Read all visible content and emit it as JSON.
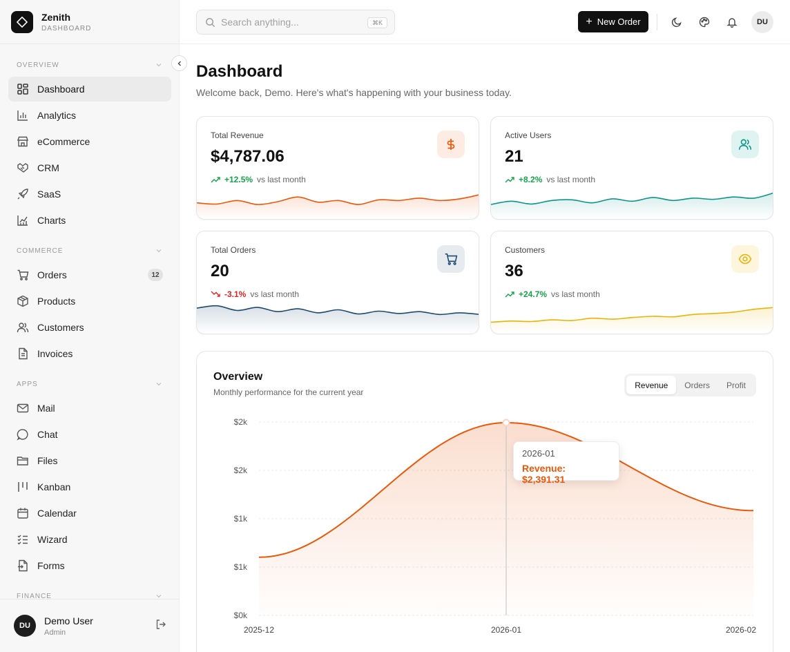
{
  "brand": {
    "name": "Zenith",
    "subtitle": "DASHBOARD"
  },
  "sidebar": {
    "sections": [
      {
        "title": "OVERVIEW",
        "items": [
          {
            "label": "Dashboard",
            "icon": "dashboard-icon",
            "active": true
          },
          {
            "label": "Analytics",
            "icon": "bar-chart-icon"
          },
          {
            "label": "eCommerce",
            "icon": "store-icon"
          },
          {
            "label": "CRM",
            "icon": "handshake-icon"
          },
          {
            "label": "SaaS",
            "icon": "rocket-icon"
          },
          {
            "label": "Charts",
            "icon": "line-chart-icon"
          }
        ]
      },
      {
        "title": "COMMERCE",
        "items": [
          {
            "label": "Orders",
            "icon": "cart-icon",
            "badge": "12"
          },
          {
            "label": "Products",
            "icon": "package-icon"
          },
          {
            "label": "Customers",
            "icon": "users-icon"
          },
          {
            "label": "Invoices",
            "icon": "file-icon"
          }
        ]
      },
      {
        "title": "APPS",
        "items": [
          {
            "label": "Mail",
            "icon": "mail-icon"
          },
          {
            "label": "Chat",
            "icon": "chat-icon"
          },
          {
            "label": "Files",
            "icon": "folder-icon"
          },
          {
            "label": "Kanban",
            "icon": "kanban-icon"
          },
          {
            "label": "Calendar",
            "icon": "calendar-icon"
          },
          {
            "label": "Wizard",
            "icon": "checklist-icon"
          },
          {
            "label": "Forms",
            "icon": "form-icon"
          }
        ]
      },
      {
        "title": "FINANCE",
        "items": []
      }
    ]
  },
  "user": {
    "initials": "DU",
    "name": "Demo User",
    "role": "Admin"
  },
  "header": {
    "search_placeholder": "Search anything...",
    "shortcut": "⌘K",
    "new_order_label": "New Order",
    "avatar_initials": "DU"
  },
  "page": {
    "title": "Dashboard",
    "subtitle": "Welcome back, Demo. Here's what's happening with your business today."
  },
  "stats": [
    {
      "label": "Total Revenue",
      "value": "$4,787.06",
      "change": "+12.5%",
      "vs": "vs last month",
      "direction": "up",
      "icon": "dollar-icon",
      "color": "#ea580c",
      "icon_bg": "#fdece3",
      "spark": [
        0.55,
        0.6,
        0.45,
        0.62,
        0.5,
        0.3,
        0.52,
        0.45,
        0.62,
        0.42,
        0.45,
        0.35,
        0.45,
        0.38,
        0.2
      ]
    },
    {
      "label": "Active Users",
      "value": "21",
      "change": "+8.2%",
      "vs": "vs last month",
      "direction": "up",
      "icon": "users-icon",
      "color": "#0d9488",
      "icon_bg": "#dff3f1",
      "spark": [
        0.62,
        0.48,
        0.6,
        0.45,
        0.42,
        0.55,
        0.38,
        0.48,
        0.32,
        0.45,
        0.35,
        0.4,
        0.3,
        0.35,
        0.12
      ]
    },
    {
      "label": "Total Orders",
      "value": "20",
      "change": "-3.1%",
      "vs": "vs last month",
      "direction": "down",
      "icon": "cart-icon",
      "color": "#1e4a6e",
      "icon_bg": "#e6ebf0",
      "spark": [
        0.15,
        0.05,
        0.25,
        0.12,
        0.3,
        0.18,
        0.35,
        0.22,
        0.4,
        0.28,
        0.38,
        0.3,
        0.42,
        0.35,
        0.42
      ]
    },
    {
      "label": "Customers",
      "value": "36",
      "change": "+24.7%",
      "vs": "vs last month",
      "direction": "up",
      "icon": "eye-icon",
      "color": "#eab308",
      "icon_bg": "#fdf6dc",
      "spark": [
        0.75,
        0.7,
        0.72,
        0.65,
        0.68,
        0.58,
        0.62,
        0.55,
        0.5,
        0.52,
        0.42,
        0.38,
        0.32,
        0.2,
        0.12
      ]
    }
  ],
  "overview": {
    "title": "Overview",
    "subtitle": "Monthly performance for the current year",
    "tabs": [
      "Revenue",
      "Orders",
      "Profit"
    ],
    "active_tab": "Revenue",
    "tooltip": {
      "date": "2026-01",
      "label": "Revenue: $2,391.31"
    }
  },
  "chart_data": {
    "type": "area",
    "x": [
      "2025-12",
      "2026-01",
      "2026-02"
    ],
    "series": [
      {
        "name": "Revenue",
        "values": [
          722,
          2391.31,
          1300
        ]
      }
    ],
    "ylim": [
      0,
      2400
    ],
    "yticks": [
      "$0k",
      "$1k",
      "$1k",
      "$2k",
      "$2k"
    ],
    "grid": true,
    "color": "#e8590c"
  }
}
